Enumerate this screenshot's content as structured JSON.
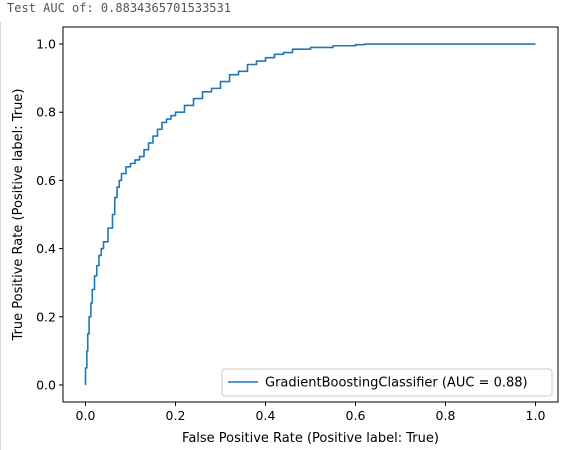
{
  "output": {
    "text": "Test AUC of: 0.8834365701533531"
  },
  "colors": {
    "series": "#1f77b4",
    "axes": "#000000",
    "legend_border": "#cccccc"
  },
  "chart_data": {
    "type": "line",
    "xlabel": "False Positive Rate (Positive label: True)",
    "ylabel": "True Positive Rate (Positive label: True)",
    "xlim": [
      -0.05,
      1.05
    ],
    "ylim": [
      -0.05,
      1.05
    ],
    "xticks": [
      0.0,
      0.2,
      0.4,
      0.6,
      0.8,
      1.0
    ],
    "yticks": [
      0.0,
      0.2,
      0.4,
      0.6,
      0.8,
      1.0
    ],
    "xtick_labels": [
      "0.0",
      "0.2",
      "0.4",
      "0.6",
      "0.8",
      "1.0"
    ],
    "ytick_labels": [
      "0.0",
      "0.2",
      "0.4",
      "0.6",
      "0.8",
      "1.0"
    ],
    "grid": false,
    "legend_position": "lower-right",
    "series": [
      {
        "name": "GradientBoostingClassifier (AUC = 0.88)",
        "x": [
          0.0,
          0.0,
          0.003,
          0.005,
          0.008,
          0.012,
          0.015,
          0.02,
          0.025,
          0.03,
          0.035,
          0.04,
          0.05,
          0.06,
          0.065,
          0.07,
          0.075,
          0.08,
          0.09,
          0.1,
          0.11,
          0.12,
          0.13,
          0.14,
          0.15,
          0.16,
          0.17,
          0.18,
          0.19,
          0.2,
          0.22,
          0.24,
          0.26,
          0.28,
          0.3,
          0.32,
          0.34,
          0.36,
          0.38,
          0.4,
          0.42,
          0.44,
          0.46,
          0.5,
          0.55,
          0.6,
          0.62,
          0.7,
          0.8,
          0.9,
          1.0
        ],
        "y": [
          0.0,
          0.05,
          0.1,
          0.15,
          0.2,
          0.24,
          0.28,
          0.32,
          0.35,
          0.38,
          0.4,
          0.42,
          0.46,
          0.5,
          0.55,
          0.58,
          0.6,
          0.62,
          0.64,
          0.65,
          0.66,
          0.67,
          0.69,
          0.71,
          0.73,
          0.75,
          0.77,
          0.78,
          0.79,
          0.8,
          0.82,
          0.84,
          0.86,
          0.87,
          0.89,
          0.91,
          0.92,
          0.94,
          0.95,
          0.96,
          0.97,
          0.975,
          0.985,
          0.99,
          0.995,
          0.998,
          1.0,
          1.0,
          1.0,
          1.0,
          1.0
        ]
      }
    ]
  }
}
